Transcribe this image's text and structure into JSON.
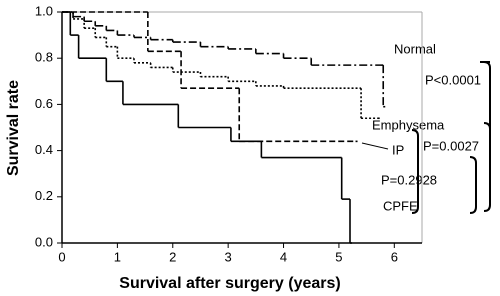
{
  "chart_data": {
    "type": "step",
    "xlabel": "Survival after surgery (years)",
    "ylabel": "Survival rate",
    "xlim": [
      0,
      6.5
    ],
    "ylim": [
      0,
      1
    ],
    "xticks": [
      0,
      1,
      2,
      3,
      4,
      5,
      6
    ],
    "yticks": [
      {
        "value": 0,
        "label": "0.0"
      },
      0.2,
      0.4,
      0.6,
      0.8,
      {
        "value": 1,
        "label": "1.0"
      }
    ],
    "series": [
      {
        "name": "Normal",
        "color": "#000000",
        "dash": "8,3,2,3",
        "x": [
          0,
          0.2,
          0.4,
          0.6,
          0.8,
          1.0,
          1.3,
          1.6,
          2.0,
          2.5,
          3.0,
          3.5,
          4.0,
          4.5,
          5.8
        ],
        "values": [
          1,
          0.98,
          0.96,
          0.94,
          0.92,
          0.9,
          0.89,
          0.88,
          0.87,
          0.85,
          0.84,
          0.82,
          0.8,
          0.77,
          0.59
        ]
      },
      {
        "name": "Emphysema",
        "color": "#000000",
        "dash": "2,2",
        "x": [
          0,
          0.2,
          0.4,
          0.6,
          0.8,
          1.0,
          1.3,
          1.6,
          2.0,
          2.5,
          3.0,
          3.5,
          4.0,
          5.4,
          5.7
        ],
        "values": [
          1,
          0.97,
          0.93,
          0.89,
          0.85,
          0.8,
          0.78,
          0.76,
          0.74,
          0.72,
          0.7,
          0.68,
          0.67,
          0.54,
          0.54
        ]
      },
      {
        "name": "IP",
        "color": "#000000",
        "dash": "6,3",
        "x": [
          0,
          1.55,
          2.15,
          3.2,
          5.3
        ],
        "values": [
          1,
          0.83,
          0.67,
          0.44,
          0.44
        ]
      },
      {
        "name": "CPFE",
        "color": "#000000",
        "dash": "",
        "x": [
          0,
          0.15,
          0.3,
          0.8,
          1.1,
          2.1,
          3.05,
          3.6,
          5.05,
          5.2
        ],
        "values": [
          1,
          0.9,
          0.8,
          0.7,
          0.6,
          0.5,
          0.44,
          0.37,
          0.19,
          0
        ]
      }
    ],
    "annotations": [
      "P<0.0001",
      "P=0.0027",
      "P=0.2928"
    ]
  }
}
